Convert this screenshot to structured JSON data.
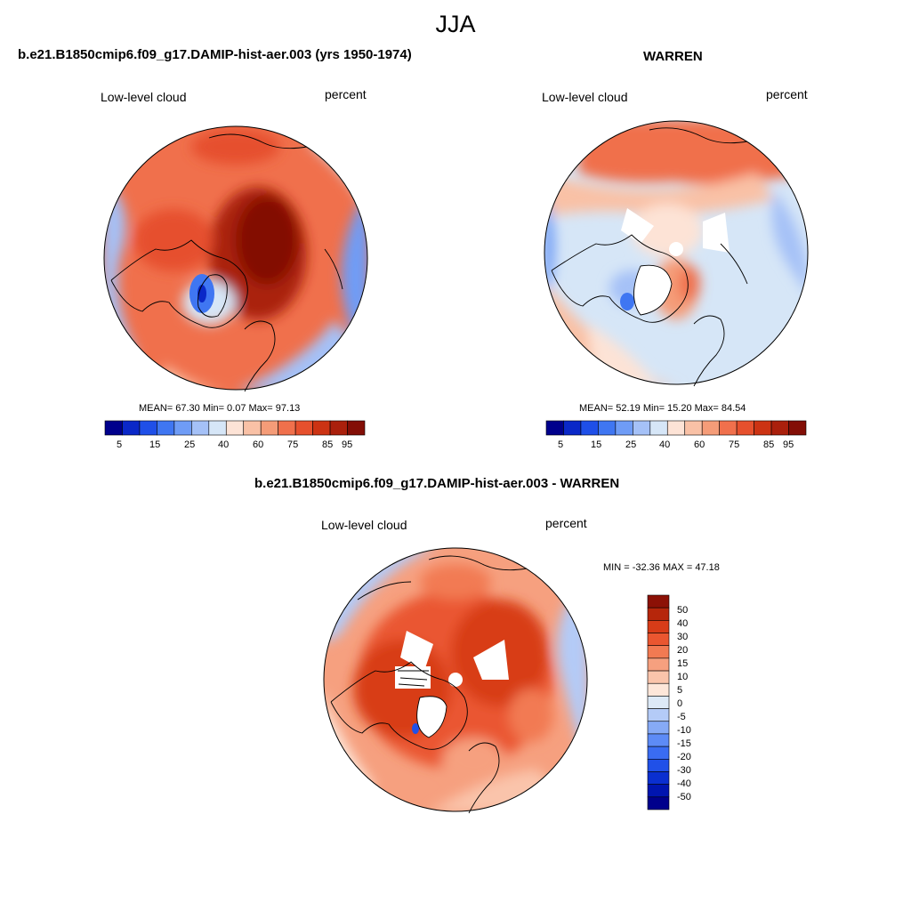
{
  "figure": {
    "title": "JJA"
  },
  "colors": {
    "abs_scale": [
      "#00008c",
      "#0a28c8",
      "#1f4fe8",
      "#3f76f2",
      "#6f9cf6",
      "#a5c1f7",
      "#d6e6f7",
      "#fde3d6",
      "#f9c1a6",
      "#f59c78",
      "#f0704c",
      "#e6502d",
      "#cc3313",
      "#aa200c",
      "#830e06"
    ],
    "diff_scale": [
      "#00008c",
      "#0015b0",
      "#0a2fd0",
      "#2050e8",
      "#3a6cf2",
      "#5d8bf6",
      "#86aaf6",
      "#b4cbf7",
      "#dde9f7",
      "#fde6d9",
      "#fac4ab",
      "#f6a07f",
      "#f27a52",
      "#ea5630",
      "#d83c18",
      "#b6260b",
      "#8c1106"
    ],
    "land_outline": "#000000"
  },
  "panels": {
    "model": {
      "title": "b.e21.B1850cmip6.f09_g17.DAMIP-hist-aer.003 (yrs 1950-1974)",
      "left_label": "Low-level cloud",
      "right_label": "percent",
      "stats": "MEAN=  67.30  Min=   0.07  Max=  97.13",
      "colorbar_ticks": [
        "5",
        "15",
        "25",
        "40",
        "60",
        "75",
        "85",
        "95"
      ]
    },
    "obs": {
      "title": "WARREN",
      "left_label": "Low-level cloud",
      "right_label": "percent",
      "stats": "MEAN=  52.19  Min=  15.20  Max=  84.54",
      "colorbar_ticks": [
        "5",
        "15",
        "25",
        "40",
        "60",
        "75",
        "85",
        "95"
      ]
    },
    "diff": {
      "title": "b.e21.B1850cmip6.f09_g17.DAMIP-hist-aer.003 - WARREN",
      "left_label": "Low-level cloud",
      "right_label": "percent",
      "stats": "MIN = -32.36 MAX =  47.18",
      "colorbar_ticks": [
        "50",
        "40",
        "30",
        "20",
        "15",
        "10",
        "5",
        "0",
        "-5",
        "-10",
        "-15",
        "-20",
        "-30",
        "-40",
        "-50"
      ]
    }
  }
}
